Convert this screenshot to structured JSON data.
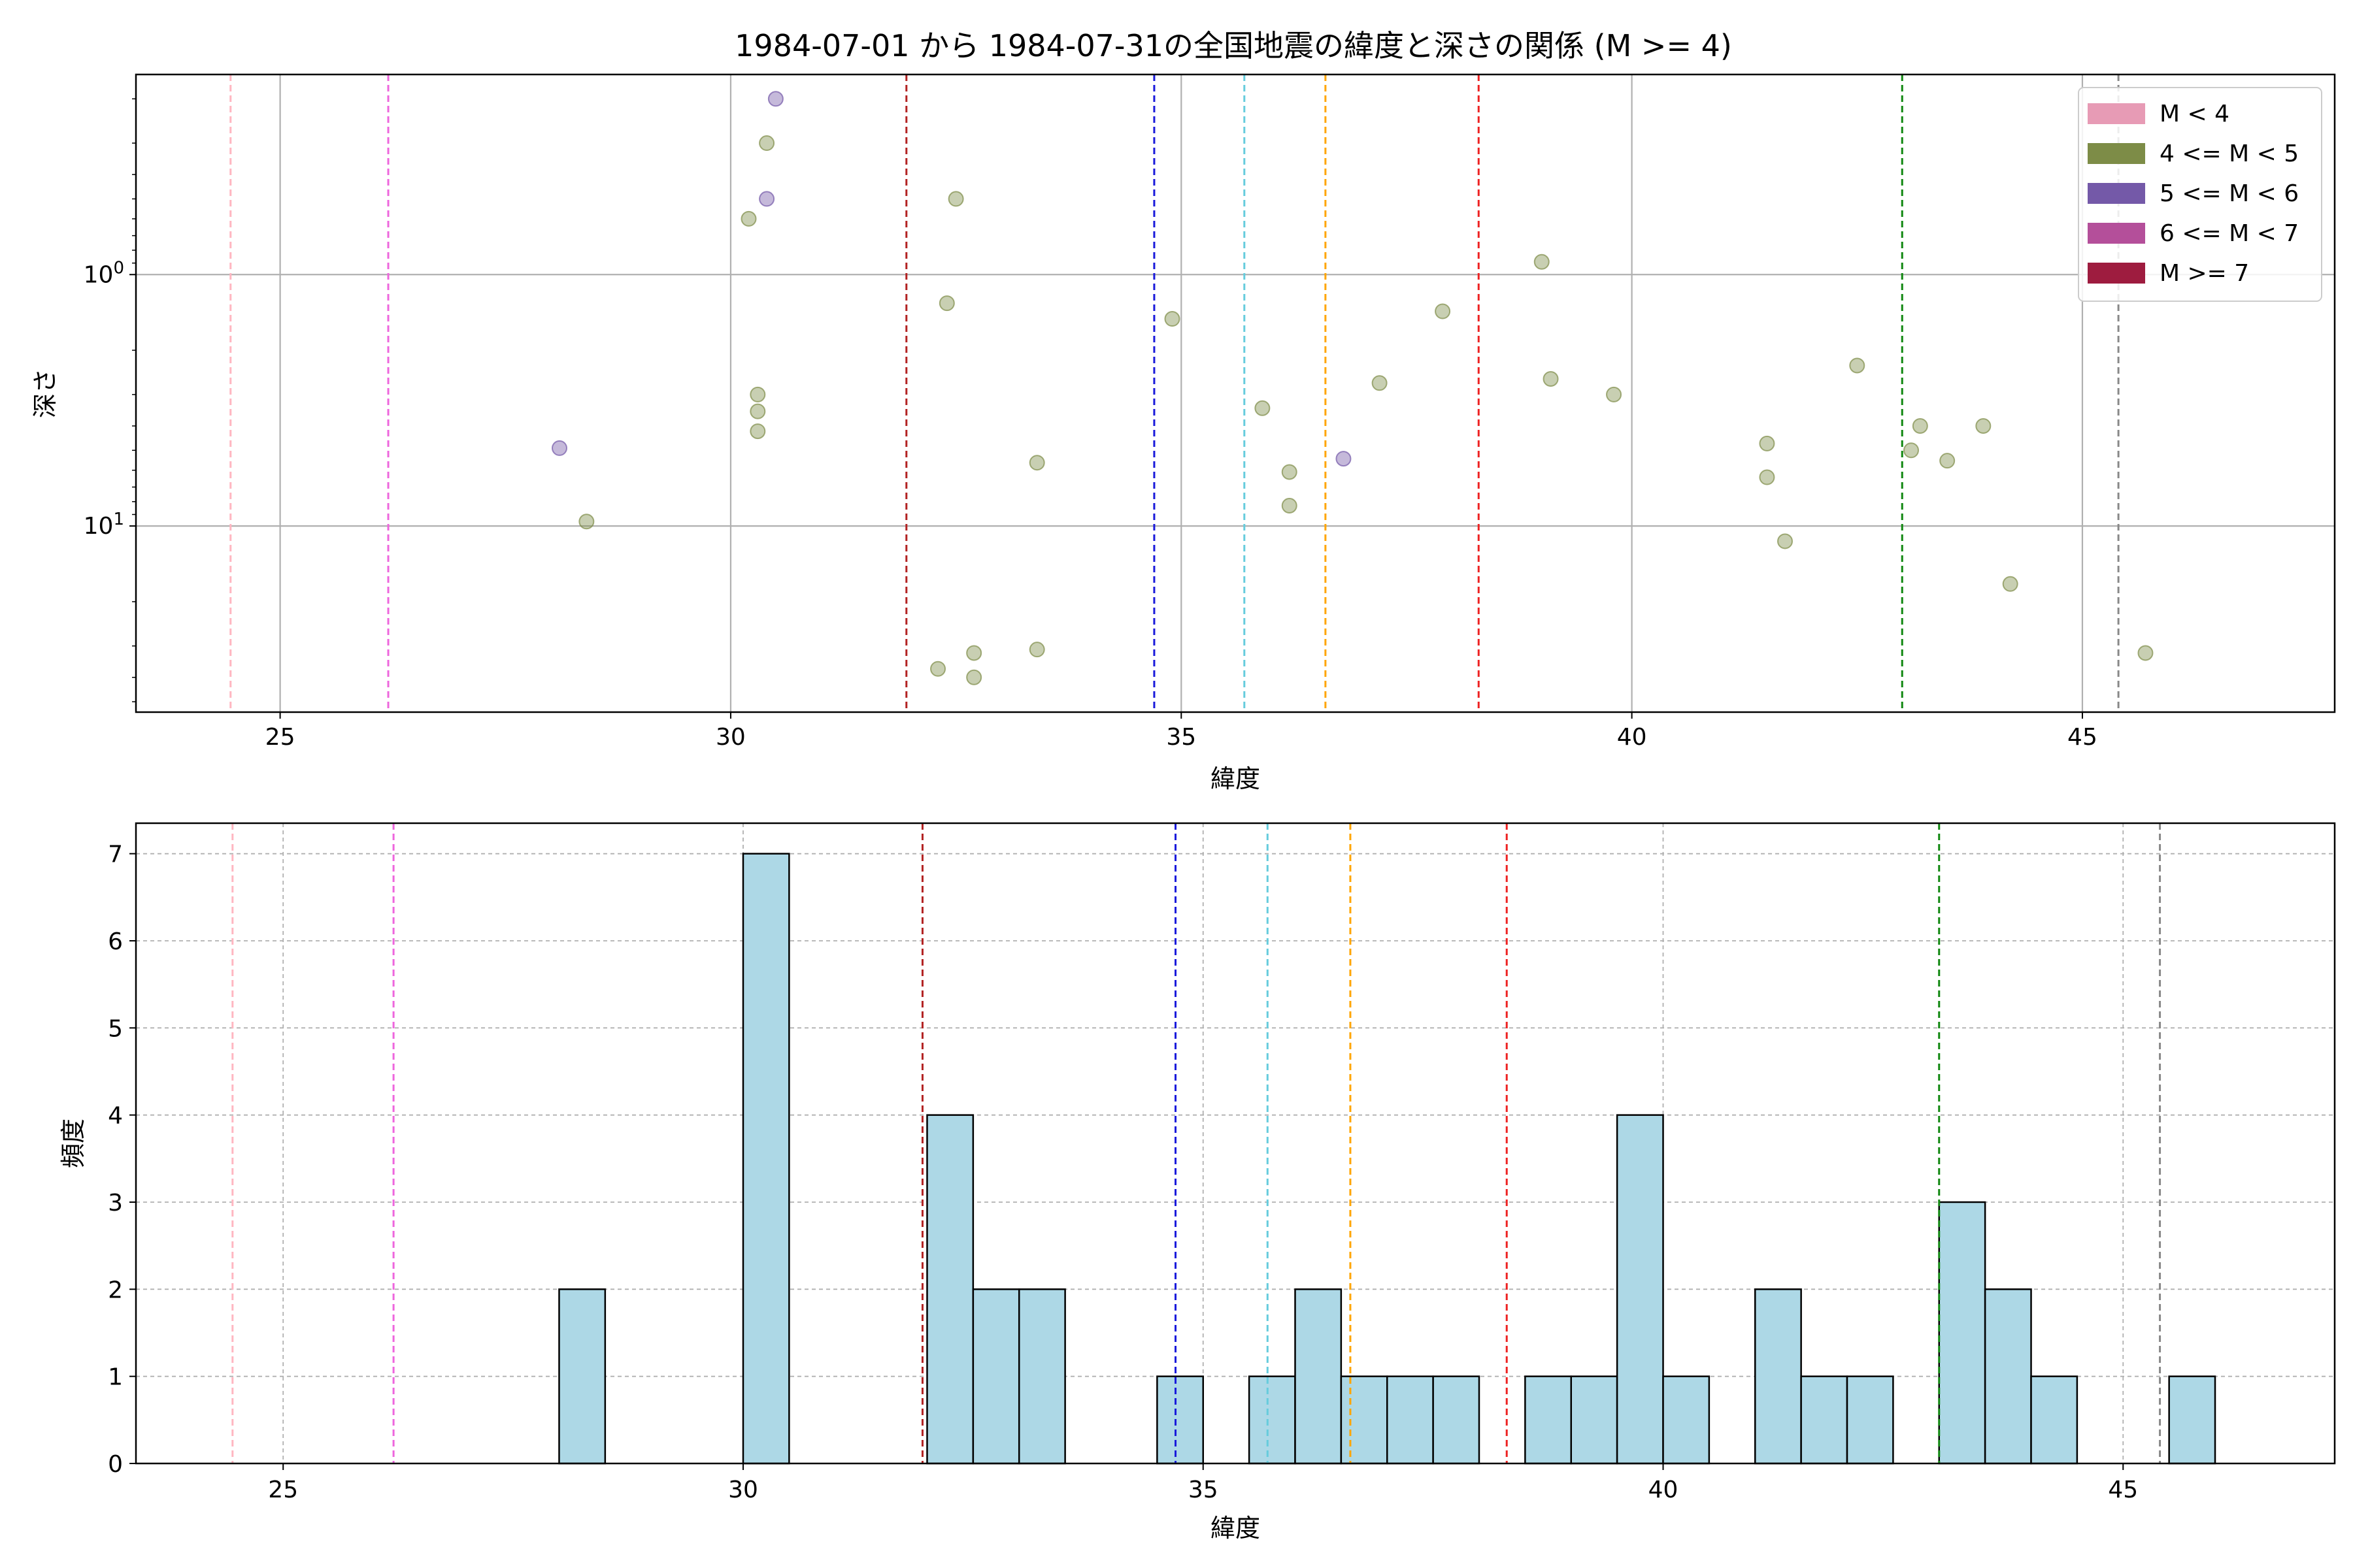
{
  "chart_data": [
    {
      "type": "scatter",
      "title": "1984-07-01 から 1984-07-31の全国地震の緯度と深さの関係 (M >= 4)",
      "xlabel": "緯度",
      "ylabel": "深さ",
      "xlim": [
        23.4,
        47.8
      ],
      "ylim": [
        55,
        0.16
      ],
      "yscale": "log",
      "y_inverted": true,
      "grid": true,
      "xticks": [
        25,
        30,
        35,
        40,
        45
      ],
      "yticks": [
        {
          "value": 1,
          "label": "10^0"
        },
        {
          "value": 10,
          "label": "10^1"
        }
      ],
      "legend_position": "top-right",
      "legend": [
        {
          "label": "M < 4",
          "color": "#e79bb5"
        },
        {
          "label": "4 <= M < 5",
          "color": "#7d8c47"
        },
        {
          "label": "5 <= M < 6",
          "color": "#7459a8"
        },
        {
          "label": "6 <= M < 7",
          "color": "#b44f9a"
        },
        {
          "label": "M >= 7",
          "color": "#9e1c3f"
        }
      ],
      "vlines": [
        {
          "x": 24.45,
          "color": "#ffb6c1"
        },
        {
          "x": 26.2,
          "color": "#ee66dd"
        },
        {
          "x": 31.95,
          "color": "#b22222"
        },
        {
          "x": 34.7,
          "color": "#1a1adb"
        },
        {
          "x": 35.7,
          "color": "#66ccdd"
        },
        {
          "x": 36.6,
          "color": "#ffa500"
        },
        {
          "x": 38.3,
          "color": "#ee2222"
        },
        {
          "x": 43.0,
          "color": "#118811"
        },
        {
          "x": 45.4,
          "color": "#888888"
        }
      ],
      "series": [
        {
          "name": "4 <= M < 5",
          "color": "#7d8c47",
          "points": [
            {
              "x": 28.4,
              "y": 9.6
            },
            {
              "x": 30.2,
              "y": 0.6
            },
            {
              "x": 30.3,
              "y": 3.0
            },
            {
              "x": 30.3,
              "y": 3.5
            },
            {
              "x": 30.3,
              "y": 4.2
            },
            {
              "x": 30.4,
              "y": 0.3
            },
            {
              "x": 32.3,
              "y": 37
            },
            {
              "x": 32.4,
              "y": 1.3
            },
            {
              "x": 32.5,
              "y": 0.5
            },
            {
              "x": 32.7,
              "y": 32
            },
            {
              "x": 32.7,
              "y": 40
            },
            {
              "x": 33.4,
              "y": 31
            },
            {
              "x": 33.4,
              "y": 5.6
            },
            {
              "x": 34.9,
              "y": 1.5
            },
            {
              "x": 35.9,
              "y": 3.4
            },
            {
              "x": 36.2,
              "y": 6.1
            },
            {
              "x": 36.2,
              "y": 8.3
            },
            {
              "x": 37.2,
              "y": 2.7
            },
            {
              "x": 37.9,
              "y": 1.4
            },
            {
              "x": 39.0,
              "y": 0.89
            },
            {
              "x": 39.1,
              "y": 2.6
            },
            {
              "x": 39.8,
              "y": 3.0
            },
            {
              "x": 41.5,
              "y": 4.7
            },
            {
              "x": 41.5,
              "y": 6.4
            },
            {
              "x": 41.7,
              "y": 11.5
            },
            {
              "x": 42.5,
              "y": 2.3
            },
            {
              "x": 43.1,
              "y": 5.0
            },
            {
              "x": 43.2,
              "y": 4.0
            },
            {
              "x": 43.5,
              "y": 5.5
            },
            {
              "x": 43.9,
              "y": 4.0
            },
            {
              "x": 44.2,
              "y": 17
            },
            {
              "x": 45.7,
              "y": 32
            }
          ]
        },
        {
          "name": "5 <= M < 6",
          "color": "#7459a8",
          "points": [
            {
              "x": 28.1,
              "y": 4.9
            },
            {
              "x": 30.4,
              "y": 0.5
            },
            {
              "x": 30.5,
              "y": 0.2
            },
            {
              "x": 36.8,
              "y": 5.4
            }
          ]
        }
      ]
    },
    {
      "type": "bar",
      "xlabel": "緯度",
      "ylabel": "頻度",
      "xlim": [
        23.4,
        47.3
      ],
      "ylim": [
        0,
        7.35
      ],
      "grid": true,
      "xticks": [
        25,
        30,
        35,
        40,
        45
      ],
      "yticks": [
        0,
        1,
        2,
        3,
        4,
        5,
        6,
        7
      ],
      "bar_color": "#add8e6",
      "bin_width": 0.5,
      "bins": [
        {
          "x0": 28.0,
          "count": 2
        },
        {
          "x0": 30.0,
          "count": 7
        },
        {
          "x0": 32.0,
          "count": 4
        },
        {
          "x0": 32.5,
          "count": 2
        },
        {
          "x0": 33.0,
          "count": 2
        },
        {
          "x0": 34.5,
          "count": 1
        },
        {
          "x0": 35.5,
          "count": 1
        },
        {
          "x0": 36.0,
          "count": 2
        },
        {
          "x0": 36.5,
          "count": 1
        },
        {
          "x0": 37.0,
          "count": 1
        },
        {
          "x0": 37.5,
          "count": 1
        },
        {
          "x0": 38.5,
          "count": 1
        },
        {
          "x0": 39.0,
          "count": 1
        },
        {
          "x0": 39.5,
          "count": 4
        },
        {
          "x0": 40.0,
          "count": 1
        },
        {
          "x0": 41.0,
          "count": 2
        },
        {
          "x0": 41.5,
          "count": 1
        },
        {
          "x0": 42.0,
          "count": 1
        },
        {
          "x0": 43.0,
          "count": 3
        },
        {
          "x0": 43.5,
          "count": 2
        },
        {
          "x0": 44.0,
          "count": 1
        },
        {
          "x0": 45.5,
          "count": 1
        }
      ],
      "vlines": [
        {
          "x": 24.45,
          "color": "#ffb6c1"
        },
        {
          "x": 26.2,
          "color": "#ee66dd"
        },
        {
          "x": 31.95,
          "color": "#b22222"
        },
        {
          "x": 34.7,
          "color": "#1a1adb"
        },
        {
          "x": 35.7,
          "color": "#66ccdd"
        },
        {
          "x": 36.6,
          "color": "#ffa500"
        },
        {
          "x": 38.3,
          "color": "#ee2222"
        },
        {
          "x": 43.0,
          "color": "#118811"
        },
        {
          "x": 45.4,
          "color": "#888888"
        }
      ]
    }
  ]
}
